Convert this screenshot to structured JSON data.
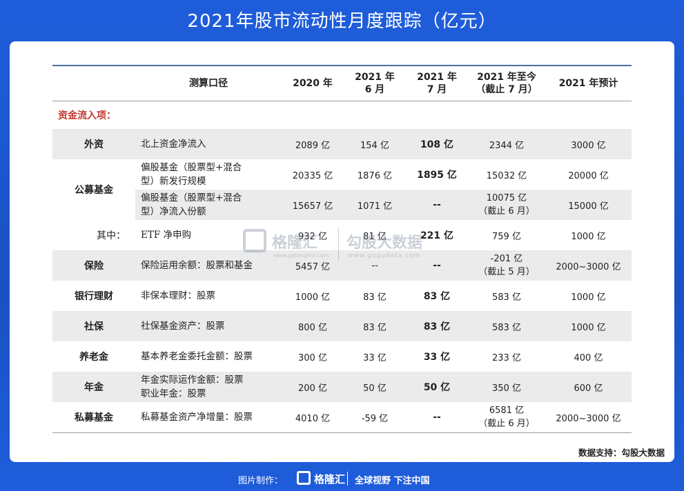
{
  "title": "2021年股市流动性月度跟踪（亿元）",
  "headers": {
    "metric": "测算口径",
    "y2020": "2020 年",
    "jun_l1": "2021 年",
    "jun_l2": "6 月",
    "jul_l1": "2021 年",
    "jul_l2": "7 月",
    "ytd_l1": "2021 年至今",
    "ytd_l2": "（截止 7 月）",
    "forecast": "2021 年预计"
  },
  "section": "资金流入项：",
  "rows": {
    "foreign": {
      "cat": "外资",
      "desc": "北上资金净流入",
      "y2020": "2089 亿",
      "jun": "154 亿",
      "jul": "108 亿",
      "ytd": "2344 亿",
      "forecast": "3000 亿"
    },
    "fund_cat": "公募基金",
    "fund1": {
      "desc_l1": "偏股基金（股票型+混合",
      "desc_l2": "型）新发行规模",
      "y2020": "20335 亿",
      "jun": "1876 亿",
      "jul": "1895 亿",
      "ytd": "15032 亿",
      "forecast": "20000 亿"
    },
    "fund2": {
      "desc_l1": "偏股基金（股票型+混合",
      "desc_l2": "型）净流入份额",
      "y2020": "15657 亿",
      "jun": "1071 亿",
      "jul": "--",
      "ytd_l1": "10075 亿",
      "ytd_l2": "（截止 6 月）",
      "forecast": "15000 亿"
    },
    "etf": {
      "cat": "其中：",
      "desc": "ETF 净申购",
      "y2020": "932 亿",
      "jun": "81 亿",
      "jul": "221 亿",
      "ytd": "759 亿",
      "forecast": "1000 亿"
    },
    "insurance": {
      "cat": "保险",
      "desc": "保险运用余额：股票和基金",
      "y2020": "5457 亿",
      "jun": "--",
      "jul": "--",
      "ytd_l1": "-201 亿",
      "ytd_l2": "（截止 5 月）",
      "forecast": "2000~3000 亿"
    },
    "bank": {
      "cat": "银行理财",
      "desc": "非保本理财：股票",
      "y2020": "1000 亿",
      "jun": "83 亿",
      "jul": "83 亿",
      "ytd": "583 亿",
      "forecast": "1000 亿"
    },
    "social": {
      "cat": "社保",
      "desc": "社保基金资产：股票",
      "y2020": "800 亿",
      "jun": "83 亿",
      "jul": "83 亿",
      "ytd": "583 亿",
      "forecast": "1000 亿"
    },
    "pension": {
      "cat": "养老金",
      "desc": "基本养老金委托金额：股票",
      "y2020": "300 亿",
      "jun": "33 亿",
      "jul": "33 亿",
      "ytd": "233 亿",
      "forecast": "400 亿"
    },
    "annuity": {
      "cat": "年金",
      "desc_l1": "年金实际运作金额：股票",
      "desc_l2": "职业年金：股票",
      "y2020": "200 亿",
      "jun": "50 亿",
      "jul": "50 亿",
      "ytd": "350 亿",
      "forecast": "600 亿"
    },
    "private": {
      "cat": "私募基金",
      "desc": "私募基金资产净增量：股票",
      "y2020": "4010 亿",
      "jun": "-59 亿",
      "jul": "--",
      "ytd_l1": "6581 亿",
      "ytd_l2": "（截止 6 月）",
      "forecast": "2000~3000 亿"
    }
  },
  "source": "数据支持：勾股大数据",
  "watermark": {
    "brand1": "格隆汇",
    "site1": "www.gelonghui.com",
    "brand2": "勾股大数据",
    "site2": "www.gogudata.com"
  },
  "footer": {
    "label": "图片制作：",
    "brand": "格隆汇",
    "slogan": "全球视野 下注中国"
  }
}
